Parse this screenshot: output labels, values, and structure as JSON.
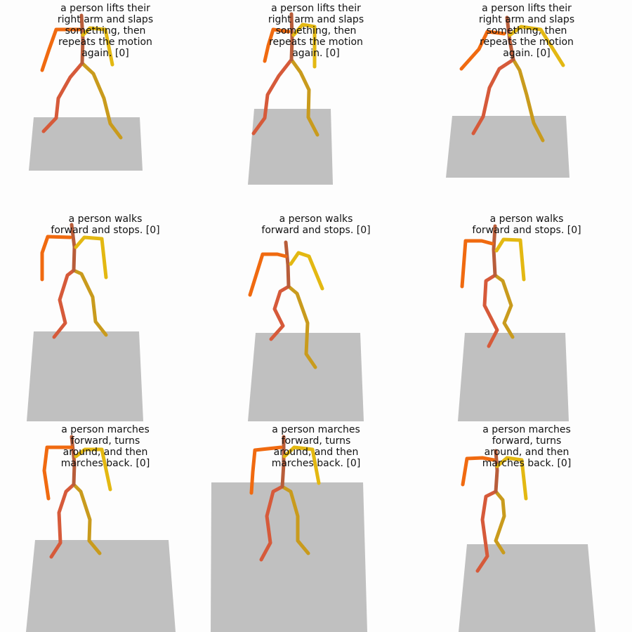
{
  "panels": [
    {
      "caption": "a person lifts their\nright arm and slaps\nsomething, then\nrepeats the motion\nagain. [0]"
    },
    {
      "caption": "a person lifts their\nright arm and slaps\nsomething, then\nrepeats the motion\nagain. [0]"
    },
    {
      "caption": "a person lifts their\nright arm and slaps\nsomething, then\nrepeats the motion\nagain. [0]"
    },
    {
      "caption": "a person walks\nforward and stops. [0]"
    },
    {
      "caption": "a person walks\nforward and stops. [0]"
    },
    {
      "caption": "a person walks\nforward and stops. [0]"
    },
    {
      "caption": "a person marches\nforward, turns\naround, and then\nmarches back. [0]"
    },
    {
      "caption": "a person marches\nforward, turns\naround, and then\nmarches back. [0]"
    },
    {
      "caption": "a person marches\nforward, turns\naround, and then\nmarches back. [0]"
    }
  ],
  "colors": {
    "floor": "#c0c0c0",
    "right_arm": "#f06a10",
    "left_arm": "#e3b812",
    "right_leg": "#d65a3a",
    "left_leg": "#c99b1d",
    "spine": "#b85d3a"
  }
}
